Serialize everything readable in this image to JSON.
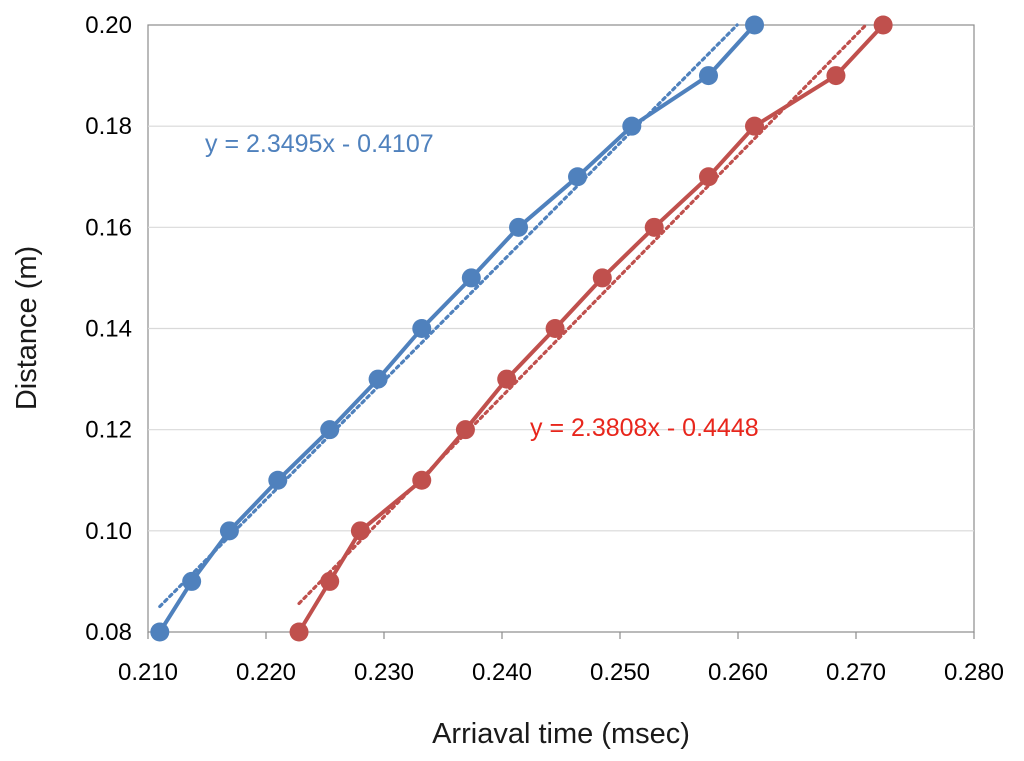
{
  "chart_data": {
    "type": "scatter",
    "title": "",
    "xlabel": "Arriaval time (msec)",
    "ylabel": "Distance (m)",
    "xlim": [
      0.21,
      0.28
    ],
    "ylim": [
      0.08,
      0.2
    ],
    "x_ticks": [
      "0.210",
      "0.220",
      "0.230",
      "0.240",
      "0.250",
      "0.260",
      "0.270",
      "0.280"
    ],
    "y_ticks": [
      "0.08",
      "0.10",
      "0.12",
      "0.14",
      "0.16",
      "0.18",
      "0.20"
    ],
    "grid": "horizontal",
    "legend": "none",
    "series": [
      {
        "color": "#4f81bd",
        "x": [
          0.211,
          0.2137,
          0.2169,
          0.221,
          0.2254,
          0.2295,
          0.2332,
          0.2374,
          0.2414,
          0.2464,
          0.251,
          0.2575,
          0.2614
        ],
        "y": [
          0.08,
          0.09,
          0.1,
          0.11,
          0.12,
          0.13,
          0.14,
          0.15,
          0.16,
          0.17,
          0.18,
          0.19,
          0.2
        ],
        "trendline": {
          "slope": 2.3495,
          "intercept": -0.4107,
          "label": "y = 2.3495x - 0.4107"
        }
      },
      {
        "color": "#c0504d",
        "x": [
          0.2228,
          0.2254,
          0.228,
          0.2332,
          0.2369,
          0.2404,
          0.2445,
          0.2485,
          0.2529,
          0.2575,
          0.2614,
          0.2683,
          0.2723
        ],
        "y": [
          0.08,
          0.09,
          0.1,
          0.11,
          0.12,
          0.13,
          0.14,
          0.15,
          0.16,
          0.17,
          0.18,
          0.19,
          0.2
        ],
        "trendline": {
          "slope": 2.3808,
          "intercept": -0.4448,
          "label": "y = 2.3808x - 0.4448",
          "label_color": "#e8261c"
        }
      }
    ]
  }
}
